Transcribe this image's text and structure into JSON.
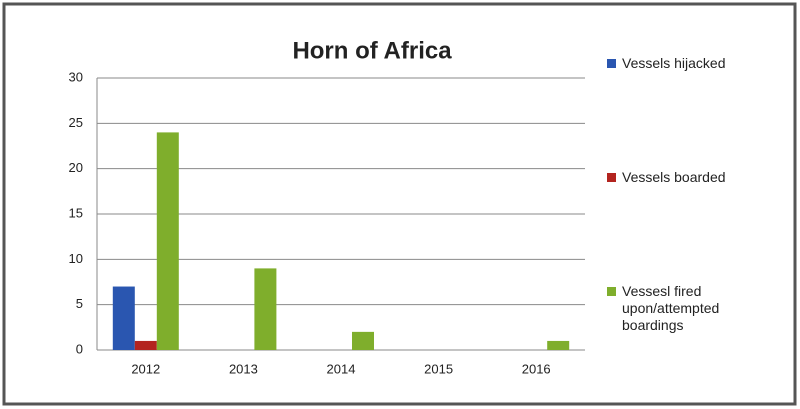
{
  "chart_data": {
    "type": "bar",
    "title": "Horn of Africa",
    "categories": [
      "2012",
      "2013",
      "2014",
      "2015",
      "2016"
    ],
    "series": [
      {
        "name": "Vessels hijacked",
        "color": "#2a56b0",
        "values": [
          7,
          0,
          0,
          0,
          0
        ]
      },
      {
        "name": "Vessels boarded",
        "color": "#b3241f",
        "values": [
          1,
          0,
          0,
          0,
          0
        ]
      },
      {
        "name": "Vessesl fired upon/attempted boardings",
        "color": "#7fae2c",
        "values": [
          24,
          9,
          2,
          0,
          1
        ]
      }
    ],
    "ylim": [
      0,
      30
    ],
    "yticks": [
      0,
      5,
      10,
      15,
      20,
      25,
      30
    ],
    "grid": true
  }
}
